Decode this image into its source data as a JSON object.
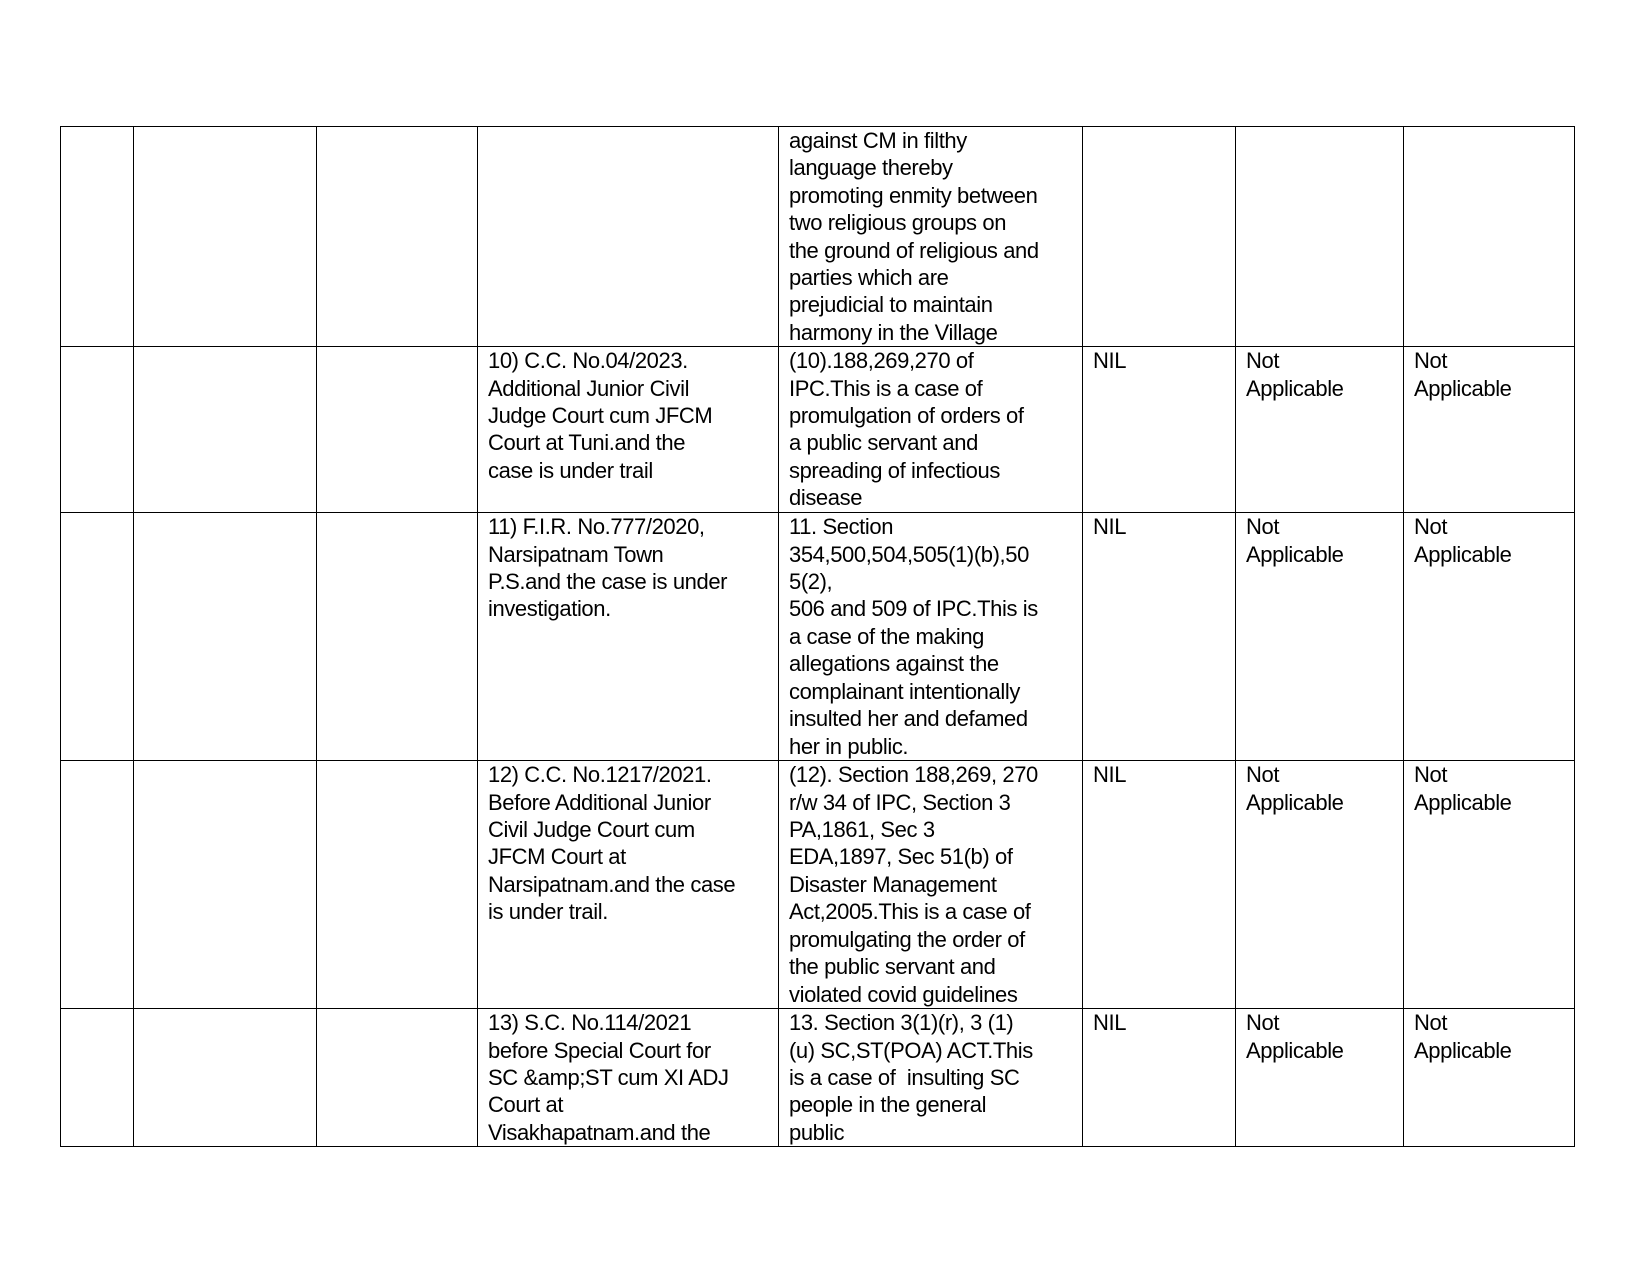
{
  "rows": [
    {
      "case": [],
      "sections": [
        "against CM in filthy",
        "language thereby",
        "promoting enmity between",
        "two religious groups on",
        "the ground of religious and",
        "parties which are",
        "prejudicial to maintain",
        "harmony in the Village"
      ],
      "col6": "",
      "col7": [],
      "col8": []
    },
    {
      "case": [
        "10) C.C. No.04/2023.",
        "Additional Junior Civil",
        "Judge Court cum JFCM",
        "Court at Tuni.and the",
        "case is under trail"
      ],
      "sections": [
        "(10).188,269,270 of",
        "IPC.This is a case of",
        "promulgation of orders of",
        "a public servant and",
        "spreading of infectious",
        "disease"
      ],
      "col6": "NIL",
      "col7": [
        "Not",
        "Applicable"
      ],
      "col8": [
        "Not",
        "Applicable"
      ]
    },
    {
      "case": [
        "11) F.I.R. No.777/2020,",
        "Narsipatnam Town",
        "P.S.and the case is under",
        "investigation."
      ],
      "sections": [
        "11. Section",
        "354,500,504,505(1)(b),50",
        "5(2),",
        "506 and 509 of IPC.This is",
        "a case of the making",
        "allegations against the",
        "complainant intentionally",
        "insulted her and defamed",
        "her in public."
      ],
      "col6": "NIL",
      "col7": [
        "Not",
        "Applicable"
      ],
      "col8": [
        "Not",
        "Applicable"
      ]
    },
    {
      "case": [
        "12) C.C. No.1217/2021.",
        "Before Additional Junior",
        "Civil Judge Court cum",
        "JFCM Court at",
        "Narsipatnam.and the case",
        "is under trail."
      ],
      "sections": [
        "(12). Section 188,269, 270",
        "r/w 34 of IPC, Section 3",
        "PA,1861, Sec 3",
        "EDA,1897, Sec 51(b) of",
        "Disaster Management",
        "Act,2005.This is a case of",
        "promulgating the order of",
        "the public servant and",
        "violated covid guidelines"
      ],
      "col6": "NIL",
      "col7": [
        "Not",
        "Applicable"
      ],
      "col8": [
        "Not",
        "Applicable"
      ]
    },
    {
      "case": [
        "13) S.C. No.114/2021",
        "before Special Court for",
        "SC &amp;ST cum XI ADJ",
        "Court at",
        "Visakhapatnam.and the"
      ],
      "sections": [
        "13. Section 3(1)(r), 3 (1)",
        "(u) SC,ST(POA) ACT.This",
        "is a case of  insulting SC",
        "people in the general",
        "public"
      ],
      "col6": "NIL",
      "col7": [
        "Not",
        "Applicable"
      ],
      "col8": [
        "Not",
        "Applicable"
      ]
    }
  ]
}
